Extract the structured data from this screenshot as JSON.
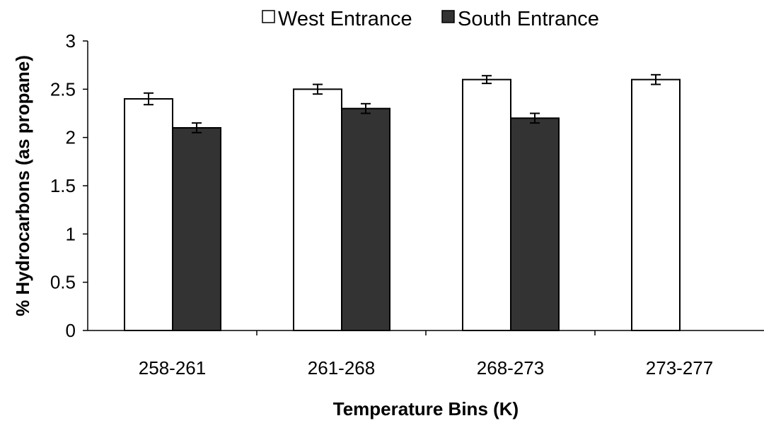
{
  "chart_data": {
    "type": "bar",
    "categories": [
      "258-261",
      "261-268",
      "268-273",
      "273-277"
    ],
    "series": [
      {
        "name": "West Entrance",
        "color": "#ffffff",
        "values": [
          2.4,
          2.5,
          2.6,
          2.6
        ],
        "errors": [
          0.06,
          0.05,
          0.04,
          0.05
        ]
      },
      {
        "name": "South Entrance",
        "color": "#333333",
        "values": [
          2.1,
          2.3,
          2.2,
          null
        ],
        "errors": [
          0.05,
          0.05,
          0.05,
          null
        ]
      }
    ],
    "xlabel": "Temperature Bins (K)",
    "ylabel": "% Hydrocarbons (as propane)",
    "ylim": [
      0,
      3
    ],
    "yticks": [
      "0",
      "0.5",
      "1",
      "1.5",
      "2",
      "2.5",
      "3"
    ],
    "grid": false,
    "legend_position": "top-center",
    "bar_edge_color": "#000000",
    "axis_color": "#000000"
  }
}
